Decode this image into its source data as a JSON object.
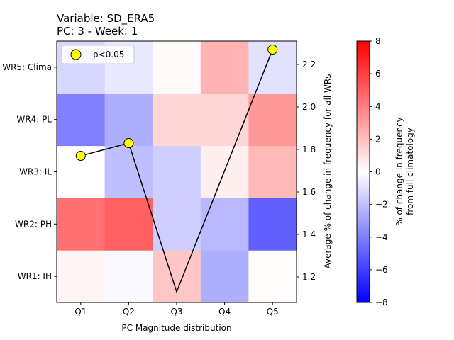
{
  "title_line1": "Variable: SD_ERA5",
  "title_line2": "PC: 3 - Week: 1",
  "chart_data": {
    "type": "heatmap",
    "title": "Variable: SD_ERA5\nPC: 3 - Week: 1",
    "xlabel": "PC Magnitude distribution",
    "ylabel_right": "Average % of change in frequency for all WRs",
    "colorbar_label_line1": "% of change in frequency",
    "colorbar_label_line2": "from full climatology",
    "x_categories": [
      "Q1",
      "Q2",
      "Q3",
      "Q4",
      "Q5"
    ],
    "y_categories": [
      "WR1: IH",
      "WR2: PH",
      "WR3: IL",
      "WR4: PL",
      "WR5: Clima"
    ],
    "values_rows_wr1_to_wr5": [
      [
        0.3,
        -0.2,
        1.8,
        -2.5,
        0.1
      ],
      [
        4.5,
        5.0,
        -1.5,
        -2.2,
        -5.0
      ],
      [
        0.0,
        -2.0,
        -1.5,
        0.5,
        2.2
      ],
      [
        -4.0,
        -2.5,
        1.3,
        1.3,
        3.2
      ],
      [
        -1.3,
        -0.7,
        0.2,
        2.4,
        -0.9
      ]
    ],
    "color_scale": {
      "vmin": -8,
      "vmax": 8,
      "cmap": "bwr"
    },
    "colorbar_ticks": [
      -8,
      -6,
      -4,
      -2,
      0,
      2,
      4,
      6,
      8
    ],
    "line_series": {
      "x": [
        "Q1",
        "Q2",
        "Q3",
        "Q4",
        "Q5"
      ],
      "y": [
        1.77,
        1.83,
        1.13,
        1.7,
        2.27
      ],
      "color": "#000000"
    },
    "significance_markers": {
      "legend_label": "p<0.05",
      "x": [
        "Q1",
        "Q2",
        "Q5"
      ],
      "y": [
        1.77,
        1.83,
        2.27
      ],
      "color": "#ffff00"
    },
    "right_axis": {
      "ylim": [
        1.08,
        2.31
      ],
      "ticks": [
        1.2,
        1.4,
        1.6,
        1.8,
        2.0,
        2.2
      ]
    }
  }
}
